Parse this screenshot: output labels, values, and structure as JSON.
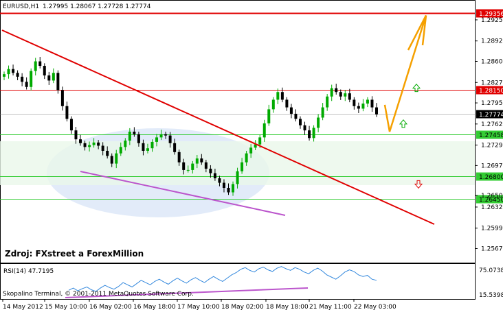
{
  "header": {
    "symbol": "EURUSD,H1",
    "ohlc": "1.27995 1.28067 1.27728 1.27774"
  },
  "source_note": "Zdroj: FXstreet a ForexMillion",
  "copyright": "Skopalino Terminal, © 2001-2011 MetaQuotes Software Corp.",
  "colors": {
    "resistance": "#e00000",
    "support": "#33cc33",
    "trendline": "#e00000",
    "channel_low": "#bb55cc",
    "forecast": "#f5a000",
    "bull_candle": "#00aa00",
    "bear_candle": "#000000",
    "rsi_line": "#3388dd",
    "highlight": "#dde8f8"
  },
  "chart_data": [
    {
      "type": "candlestick",
      "title": "EURUSD,H1",
      "ylim": [
        1.2545,
        1.2955
      ],
      "y_ticks": [
        "1.29250",
        "1.28920",
        "1.28600",
        "1.28270",
        "1.27950",
        "1.27620",
        "1.27290",
        "1.26970",
        "1.26500",
        "1.26320",
        "1.25990",
        "1.25670"
      ],
      "x_ticks": [
        "14 May 2012",
        "15 May 10:00",
        "16 May 02:00",
        "16 May 18:00",
        "17 May 10:00",
        "18 May 02:00",
        "18 May 18:00",
        "21 May 11:00",
        "22 May 03:00"
      ],
      "levels": [
        {
          "label": "1.29356",
          "value": 1.29356,
          "kind": "resistance"
        },
        {
          "label": "1.28150",
          "value": 1.2815,
          "kind": "resistance"
        },
        {
          "label": "1.27774",
          "value": 1.27774,
          "kind": "current"
        },
        {
          "label": "1.27458",
          "value": 1.27458,
          "kind": "support"
        },
        {
          "label": "1.26800",
          "value": 1.268,
          "kind": "support"
        },
        {
          "label": "1.26450",
          "value": 1.2645,
          "kind": "support"
        }
      ],
      "close_series": [
        1.284,
        1.2848,
        1.2842,
        1.2836,
        1.2828,
        1.282,
        1.2845,
        1.286,
        1.2853,
        1.2838,
        1.283,
        1.2842,
        1.2815,
        1.279,
        1.277,
        1.2752,
        1.2738,
        1.2732,
        1.2726,
        1.2729,
        1.2733,
        1.2728,
        1.272,
        1.2712,
        1.27,
        1.2716,
        1.2726,
        1.2736,
        1.275,
        1.2746,
        1.2732,
        1.272,
        1.2724,
        1.2734,
        1.2741,
        1.2746,
        1.2744,
        1.2732,
        1.2718,
        1.2702,
        1.269,
        1.269,
        1.27,
        1.2708,
        1.2702,
        1.2692,
        1.2685,
        1.2677,
        1.267,
        1.2662,
        1.2655,
        1.2668,
        1.2688,
        1.2702,
        1.2716,
        1.2725,
        1.273,
        1.2741,
        1.2763,
        1.2785,
        1.28,
        1.2812,
        1.28,
        1.2788,
        1.2778,
        1.277,
        1.276,
        1.2752,
        1.274,
        1.2756,
        1.2772,
        1.2788,
        1.2805,
        1.2818,
        1.2812,
        1.2805,
        1.281,
        1.28,
        1.279,
        1.2786,
        1.2794,
        1.28,
        1.2788,
        1.2777
      ],
      "forecast_path": [
        {
          "x": "22 May 03:00",
          "y": 1.2792
        },
        {
          "x": "22 May 03:00",
          "y": 1.275
        },
        {
          "x": "22 May 03:00",
          "y": 1.2932
        }
      ],
      "arrows": [
        {
          "direction": "up",
          "price": 1.2818
        },
        {
          "direction": "up",
          "price": 1.2762
        },
        {
          "direction": "down",
          "price": 1.2668
        }
      ]
    },
    {
      "type": "line",
      "title": "RSI(14) 47.7195",
      "ylim": [
        15.5398,
        75.0738
      ],
      "y_ticks": [
        "75.0738",
        "15.5398"
      ],
      "series": [
        {
          "name": "RSI(14)",
          "values": [
            30,
            34,
            29,
            33,
            36,
            31,
            28,
            34,
            39,
            35,
            32,
            37,
            44,
            40,
            36,
            42,
            48,
            44,
            40,
            46,
            50,
            45,
            41,
            47,
            52,
            47,
            43,
            49,
            53,
            48,
            44,
            50,
            55,
            50,
            46,
            52,
            58,
            62,
            68,
            71,
            66,
            63,
            69,
            72,
            67,
            64,
            70,
            73,
            69,
            66,
            71,
            68,
            63,
            60,
            66,
            70,
            65,
            58,
            54,
            50,
            56,
            63,
            67,
            64,
            58,
            55,
            57,
            50,
            48
          ]
        }
      ]
    }
  ]
}
